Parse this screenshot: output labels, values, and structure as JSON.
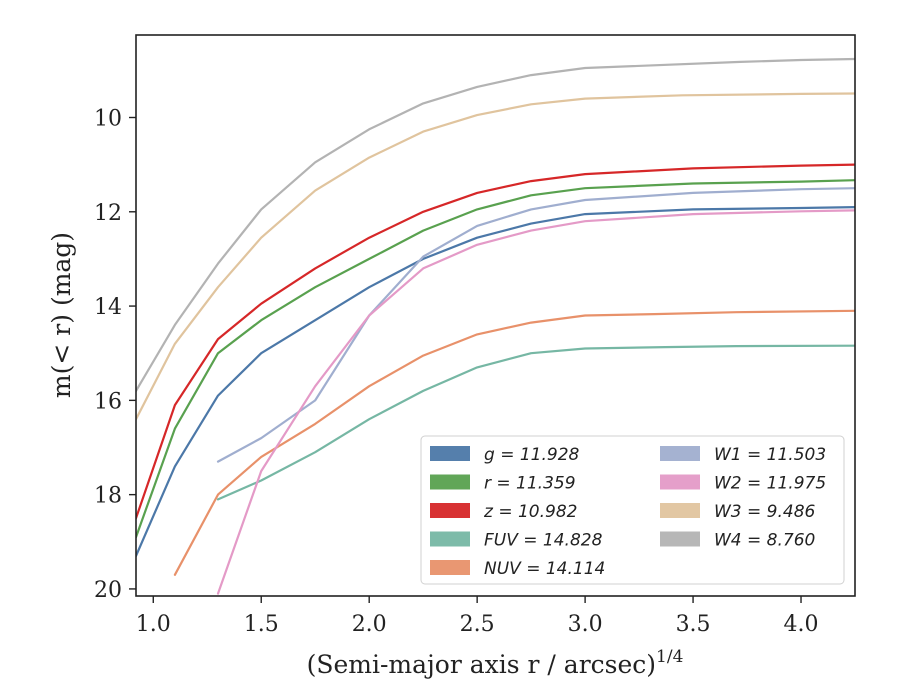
{
  "chart_data": {
    "type": "line",
    "xlabel": "(Semi-major axis r / arcsec)",
    "xlabel_sup": "1/4",
    "ylabel": "m(< r) (mag)",
    "xlim": [
      0.92,
      4.25
    ],
    "ylim": [
      20.15,
      8.25
    ],
    "y_inverted": true,
    "grid": false,
    "legend_position": "bottom-right",
    "x_ticks": [
      "1.0",
      "1.5",
      "2.0",
      "2.5",
      "3.0",
      "3.5",
      "4.0"
    ],
    "y_ticks": [
      "10",
      "12",
      "14",
      "16",
      "18",
      "20"
    ],
    "series": [
      {
        "name": "g = 11.928",
        "color": "#4c78a8",
        "x": [
          0.92,
          1.1,
          1.3,
          1.5,
          1.75,
          2.0,
          2.25,
          2.5,
          2.75,
          3.0,
          3.5,
          4.0,
          4.25
        ],
        "y": [
          19.3,
          17.4,
          15.9,
          15.0,
          14.3,
          13.6,
          13.0,
          12.55,
          12.25,
          12.05,
          11.95,
          11.92,
          11.9
        ]
      },
      {
        "name": "r = 11.359",
        "color": "#59a14f",
        "x": [
          0.92,
          1.1,
          1.3,
          1.5,
          1.75,
          2.0,
          2.25,
          2.5,
          2.75,
          3.0,
          3.5,
          4.0,
          4.25
        ],
        "y": [
          18.9,
          16.6,
          15.0,
          14.3,
          13.6,
          13.0,
          12.4,
          11.95,
          11.65,
          11.5,
          11.4,
          11.36,
          11.33
        ]
      },
      {
        "name": "z = 10.982",
        "color": "#d62728",
        "x": [
          0.92,
          1.1,
          1.3,
          1.5,
          1.75,
          2.0,
          2.25,
          2.5,
          2.75,
          3.0,
          3.5,
          4.0,
          4.25
        ],
        "y": [
          18.5,
          16.1,
          14.7,
          13.95,
          13.2,
          12.55,
          12.0,
          11.6,
          11.35,
          11.2,
          11.08,
          11.02,
          11.0
        ]
      },
      {
        "name": "FUV = 14.828",
        "color": "#76b7a4",
        "x": [
          1.3,
          1.5,
          1.75,
          2.0,
          2.25,
          2.5,
          2.75,
          3.0,
          3.37,
          3.7,
          4.25
        ],
        "y": [
          18.1,
          17.7,
          17.1,
          16.4,
          15.8,
          15.3,
          15.0,
          14.9,
          14.87,
          14.85,
          14.84
        ]
      },
      {
        "name": "NUV = 14.114",
        "color": "#e8916a",
        "x": [
          1.1,
          1.3,
          1.5,
          1.75,
          2.0,
          2.25,
          2.5,
          2.75,
          3.0,
          3.32,
          3.7,
          4.25
        ],
        "y": [
          19.7,
          18.0,
          17.2,
          16.5,
          15.7,
          15.05,
          14.6,
          14.35,
          14.2,
          14.17,
          14.13,
          14.1
        ]
      },
      {
        "name": "W1 = 11.503",
        "color": "#a0aecf",
        "x": [
          1.3,
          1.5,
          1.75,
          2.0,
          2.25,
          2.5,
          2.75,
          3.0,
          3.5,
          4.0,
          4.25
        ],
        "y": [
          17.3,
          16.8,
          16.0,
          14.2,
          12.95,
          12.3,
          11.95,
          11.75,
          11.6,
          11.52,
          11.5
        ]
      },
      {
        "name": "W2 = 11.975",
        "color": "#e49ac7",
        "x": [
          1.3,
          1.5,
          1.75,
          2.0,
          2.25,
          2.5,
          2.75,
          3.0,
          3.5,
          4.0,
          4.25
        ],
        "y": [
          20.1,
          17.5,
          15.7,
          14.2,
          13.2,
          12.7,
          12.4,
          12.2,
          12.05,
          11.99,
          11.97
        ]
      },
      {
        "name": "W3 = 9.486",
        "color": "#e0c49e",
        "x": [
          0.92,
          1.1,
          1.3,
          1.5,
          1.75,
          2.0,
          2.25,
          2.5,
          2.75,
          3.0,
          3.45,
          4.0,
          4.25
        ],
        "y": [
          16.4,
          14.8,
          13.6,
          12.55,
          11.55,
          10.85,
          10.3,
          9.95,
          9.72,
          9.6,
          9.53,
          9.5,
          9.49
        ]
      },
      {
        "name": "W4 = 8.760",
        "color": "#b3b3b3",
        "x": [
          0.92,
          1.1,
          1.3,
          1.5,
          1.75,
          2.0,
          2.25,
          2.5,
          2.75,
          3.0,
          3.72,
          4.0,
          4.25
        ],
        "y": [
          15.8,
          14.4,
          13.1,
          11.95,
          10.95,
          10.25,
          9.7,
          9.35,
          9.1,
          8.95,
          8.82,
          8.78,
          8.76
        ]
      }
    ]
  }
}
